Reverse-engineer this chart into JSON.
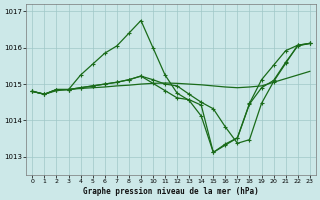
{
  "title": "Graphe pression niveau de la mer (hPa)",
  "background_color": "#cce8e8",
  "grid_color": "#a0c8c8",
  "line_color": "#1a6b1a",
  "xlim": [
    -0.5,
    23.5
  ],
  "ylim": [
    1012.5,
    1017.2
  ],
  "yticks": [
    1013,
    1014,
    1015,
    1016,
    1017
  ],
  "xticks": [
    0,
    1,
    2,
    3,
    4,
    5,
    6,
    7,
    8,
    9,
    10,
    11,
    12,
    13,
    14,
    15,
    16,
    17,
    18,
    19,
    20,
    21,
    22,
    23
  ],
  "lines": [
    {
      "x": [
        0,
        1,
        2,
        3,
        4,
        5,
        6,
        7,
        8,
        9,
        10,
        11,
        12,
        13,
        14,
        15,
        16,
        17,
        18,
        19,
        20,
        21,
        22,
        23
      ],
      "y": [
        1014.8,
        1014.72,
        1014.82,
        1014.85,
        1014.88,
        1014.9,
        1014.92,
        1014.95,
        1014.97,
        1015.0,
        1015.02,
        1015.03,
        1015.02,
        1015.0,
        1014.98,
        1014.95,
        1014.92,
        1014.9,
        1014.92,
        1014.95,
        1015.05,
        1015.15,
        1015.25,
        1015.35
      ],
      "style": "-",
      "marker": null,
      "lw": 0.9
    },
    {
      "x": [
        0,
        1,
        2,
        3,
        4,
        5,
        6,
        7,
        8,
        9,
        10,
        11,
        12,
        13,
        14,
        15,
        16,
        17,
        18,
        19,
        20,
        21,
        22,
        23
      ],
      "y": [
        1014.8,
        1014.72,
        1014.85,
        1014.85,
        1015.25,
        1015.55,
        1015.85,
        1016.05,
        1016.4,
        1016.75,
        1016.0,
        1015.25,
        1014.75,
        1014.55,
        1014.12,
        1013.12,
        1013.35,
        1013.52,
        1014.45,
        1014.9,
        1015.1,
        1015.6,
        1016.05,
        1016.12
      ],
      "style": "-",
      "marker": "+",
      "lw": 0.9
    },
    {
      "x": [
        0,
        1,
        2,
        3,
        4,
        5,
        6,
        7,
        8,
        9,
        10,
        11,
        12,
        13,
        14,
        15,
        16,
        17,
        18,
        19,
        20,
        21,
        22,
        23
      ],
      "y": [
        1014.8,
        1014.72,
        1014.85,
        1014.85,
        1014.9,
        1014.95,
        1015.0,
        1015.05,
        1015.12,
        1015.22,
        1015.12,
        1015.0,
        1014.95,
        1014.72,
        1014.5,
        1014.32,
        1013.82,
        1013.37,
        1013.47,
        1014.47,
        1015.07,
        1015.57,
        1016.07,
        1016.12
      ],
      "style": "-",
      "marker": "+",
      "lw": 0.9
    },
    {
      "x": [
        0,
        1,
        2,
        3,
        4,
        5,
        6,
        7,
        8,
        9,
        10,
        11,
        12,
        13,
        14,
        15,
        16,
        17,
        18,
        19,
        20,
        21,
        22,
        23
      ],
      "y": [
        1014.8,
        1014.72,
        1014.85,
        1014.85,
        1014.9,
        1014.95,
        1015.0,
        1015.05,
        1015.12,
        1015.22,
        1015.02,
        1014.82,
        1014.62,
        1014.57,
        1014.42,
        1013.12,
        1013.32,
        1013.52,
        1014.47,
        1015.12,
        1015.52,
        1015.92,
        1016.07,
        1016.12
      ],
      "style": "-",
      "marker": "+",
      "lw": 0.9
    }
  ]
}
